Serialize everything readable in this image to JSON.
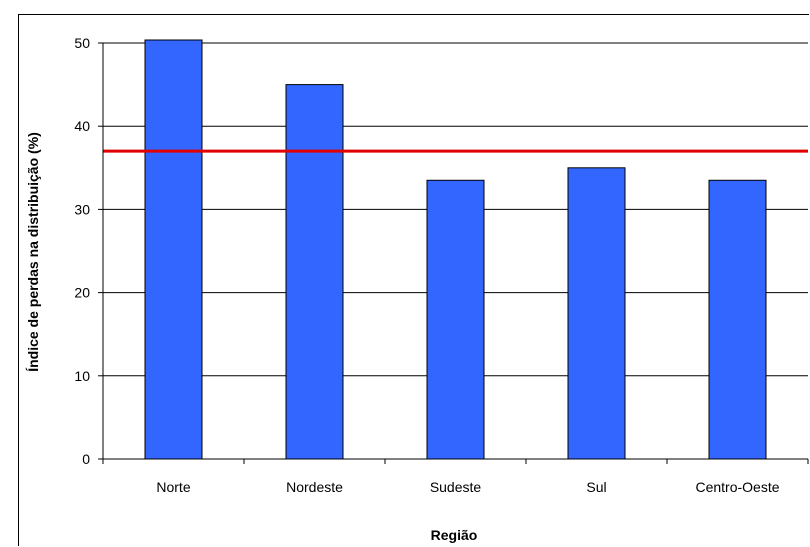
{
  "chart_data": {
    "type": "bar",
    "title": "",
    "xlabel": "Região",
    "ylabel": "Índice de perdas na distribuição (%)",
    "categories": [
      "Norte",
      "Nordeste",
      "Sudeste",
      "Sul",
      "Centro-Oeste"
    ],
    "values": [
      50.5,
      45.0,
      33.5,
      35.0,
      33.5
    ],
    "ylim": [
      0,
      50
    ],
    "yticks": [
      0,
      10,
      20,
      30,
      40,
      50
    ],
    "grid": true,
    "bar_color": "#3366ff",
    "reference_line": {
      "value": 37,
      "color": "#e00000"
    }
  }
}
